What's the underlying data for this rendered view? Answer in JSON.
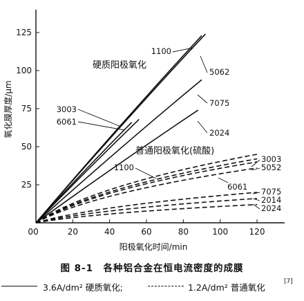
{
  "chart_data": {
    "type": "line",
    "title": "",
    "xlabel": "阳极氧化时间/min",
    "ylabel": "氧化膜厚度/μm",
    "xlim": [
      0,
      135
    ],
    "ylim": [
      0,
      140
    ],
    "xticks": [
      0,
      20,
      40,
      60,
      80,
      100,
      120
    ],
    "yticks": [
      25,
      50,
      75,
      100,
      125
    ],
    "groups": {
      "hard": "硬质阳极氧化",
      "normal": "普通阳极氧化(硫酸)"
    },
    "series": [
      {
        "name": "1100",
        "group": "hard",
        "style": "solid",
        "x": [
          0,
          90
        ],
        "y": [
          0,
          123
        ]
      },
      {
        "name": "5062",
        "group": "hard",
        "style": "solid",
        "x": [
          0,
          92
        ],
        "y": [
          0,
          124
        ]
      },
      {
        "name": "3003",
        "group": "hard",
        "style": "solid",
        "x": [
          0,
          52
        ],
        "y": [
          0,
          66
        ]
      },
      {
        "name": "6061",
        "group": "hard",
        "style": "solid",
        "x": [
          0,
          56
        ],
        "y": [
          0,
          68
        ]
      },
      {
        "name": "7075",
        "group": "hard",
        "style": "solid",
        "x": [
          0,
          90
        ],
        "y": [
          0,
          94
        ]
      },
      {
        "name": "2024",
        "group": "hard",
        "style": "solid",
        "x": [
          0,
          88
        ],
        "y": [
          0,
          74
        ]
      },
      {
        "name": "3003",
        "group": "normal",
        "style": "dashed",
        "x": [
          0,
          120
        ],
        "y": [
          0,
          45
        ]
      },
      {
        "name": "5052",
        "group": "normal",
        "style": "dashed",
        "x": [
          0,
          120
        ],
        "y": [
          0,
          42
        ]
      },
      {
        "name": "1100",
        "group": "normal",
        "style": "dashed",
        "x": [
          0,
          120
        ],
        "y": [
          0,
          40
        ]
      },
      {
        "name": "6061",
        "group": "normal",
        "style": "dashed",
        "x": [
          0,
          120
        ],
        "y": [
          0,
          36
        ]
      },
      {
        "name": "7075",
        "group": "normal",
        "style": "dashed",
        "x": [
          0,
          120
        ],
        "y": [
          0,
          20
        ]
      },
      {
        "name": "2014",
        "group": "normal",
        "style": "dashed",
        "x": [
          0,
          120
        ],
        "y": [
          0,
          16
        ]
      },
      {
        "name": "2024",
        "group": "normal",
        "style": "dashed",
        "x": [
          0,
          120
        ],
        "y": [
          0,
          12
        ]
      }
    ]
  },
  "caption": "图 8-1　各种铝合金在恒电流密度的成膜",
  "legend": {
    "solid_label": "3.6A/dm² 硬质氧化;",
    "dashed_label": "1.2A/dm² 普通氧化",
    "ref": "[7]"
  }
}
